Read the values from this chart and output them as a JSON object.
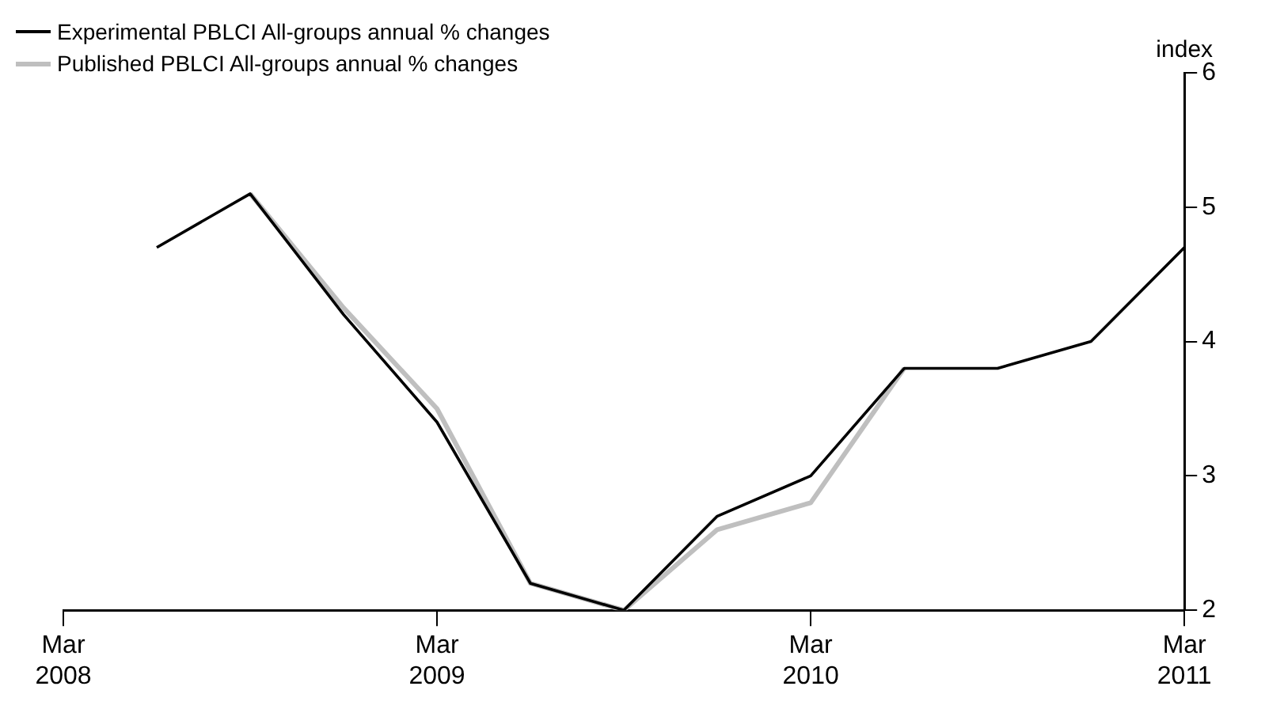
{
  "chart_data": {
    "type": "line",
    "x": [
      "2008-06",
      "2008-09",
      "2008-12",
      "2009-03",
      "2009-06",
      "2009-09",
      "2009-12",
      "2010-03",
      "2010-06",
      "2010-09",
      "2010-12",
      "2011-03"
    ],
    "series": [
      {
        "name": "Published PBLCI All-groups annual % changes",
        "color": "#bfbfbf",
        "values": [
          null,
          5.1,
          4.25,
          3.5,
          2.2,
          2.0,
          2.6,
          2.8,
          3.8,
          null,
          null,
          null
        ]
      },
      {
        "name": "Experimental PBLCI All-groups annual % changes",
        "color": "#000000",
        "values": [
          4.7,
          5.1,
          4.2,
          3.4,
          2.2,
          2.0,
          2.7,
          3.0,
          3.8,
          3.8,
          4.0,
          4.7
        ]
      }
    ],
    "ylabel": "index",
    "xlim": [
      "2008-03",
      "2011-03"
    ],
    "xticks": [
      {
        "value": "2008-03",
        "label": "Mar 2008"
      },
      {
        "value": "2009-03",
        "label": "Mar 2009"
      },
      {
        "value": "2010-03",
        "label": "Mar 2010"
      },
      {
        "value": "2011-03",
        "label": "Mar 2011"
      }
    ],
    "ylim": [
      2,
      6
    ],
    "yticks": [
      2,
      3,
      4,
      5,
      6
    ],
    "grid": false,
    "legend": "top left",
    "marker": "none",
    "line_style": "solid"
  }
}
